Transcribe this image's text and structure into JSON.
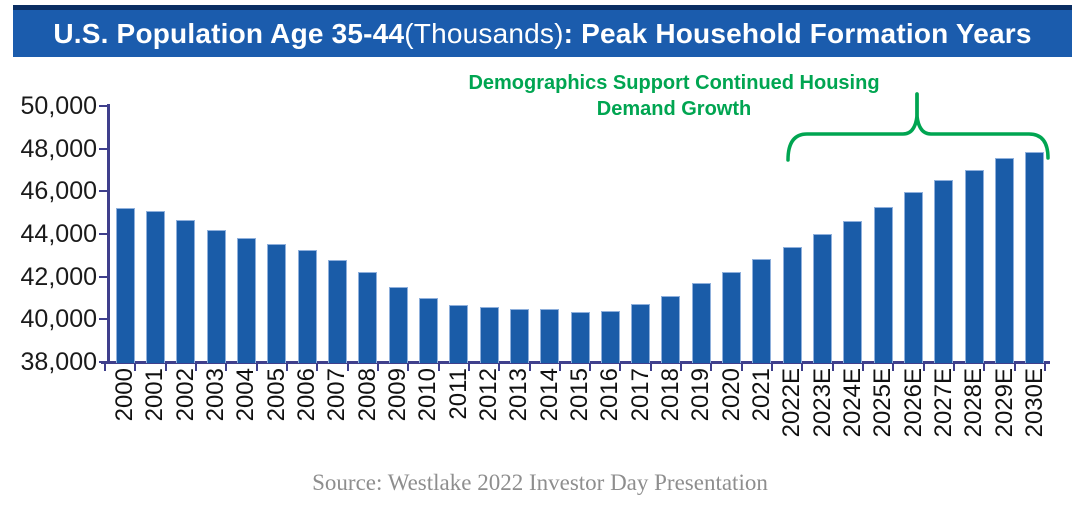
{
  "title": {
    "part1": "U.S. Population Age 35-44 ",
    "part2": "(Thousands)",
    "part3": ": Peak Household Formation Years"
  },
  "annotation": {
    "line1": "Demographics Support Continued Housing",
    "line2": "Demand Growth"
  },
  "source": "Source: Westlake 2022 Investor Day Presentation",
  "colors": {
    "title_bg": "#1B5CAD",
    "title_top_border": "#0A2E63",
    "bar": "#1A5CA8",
    "bar_edge": "#8FB0DC",
    "axis": "#3F3F8C",
    "annotation_green": "#00A551",
    "source_gray": "#8E8E8E"
  },
  "chart_data": {
    "type": "bar",
    "title": "U.S. Population Age 35-44 (Thousands): Peak Household Formation Years",
    "xlabel": "",
    "ylabel": "",
    "categories": [
      "2000",
      "2001",
      "2002",
      "2003",
      "2004",
      "2005",
      "2006",
      "2007",
      "2008",
      "2009",
      "2010",
      "2011",
      "2012",
      "2013",
      "2014",
      "2015",
      "2016",
      "2017",
      "2018",
      "2019",
      "2020",
      "2021",
      "2022E",
      "2023E",
      "2024E",
      "2025E",
      "2026E",
      "2027E",
      "2028E",
      "2029E",
      "2030E"
    ],
    "values": [
      45200,
      45100,
      44650,
      44200,
      43800,
      43550,
      43250,
      42800,
      42200,
      41500,
      41000,
      40650,
      40600,
      40500,
      40500,
      40350,
      40400,
      40700,
      41100,
      41700,
      42200,
      42850,
      43400,
      44000,
      44600,
      45250,
      45950,
      46550,
      47000,
      47550,
      47850
    ],
    "ylim": [
      38000,
      50000
    ],
    "ytick_interval": 2000,
    "ytick_labels": [
      "38,000",
      "40,000",
      "42,000",
      "44,000",
      "46,000",
      "48,000",
      "50,000"
    ],
    "grid": false,
    "legend": null,
    "annotation_text": "Demographics Support Continued Housing Demand Growth",
    "bracket_span": [
      "2022E",
      "2030E"
    ]
  }
}
